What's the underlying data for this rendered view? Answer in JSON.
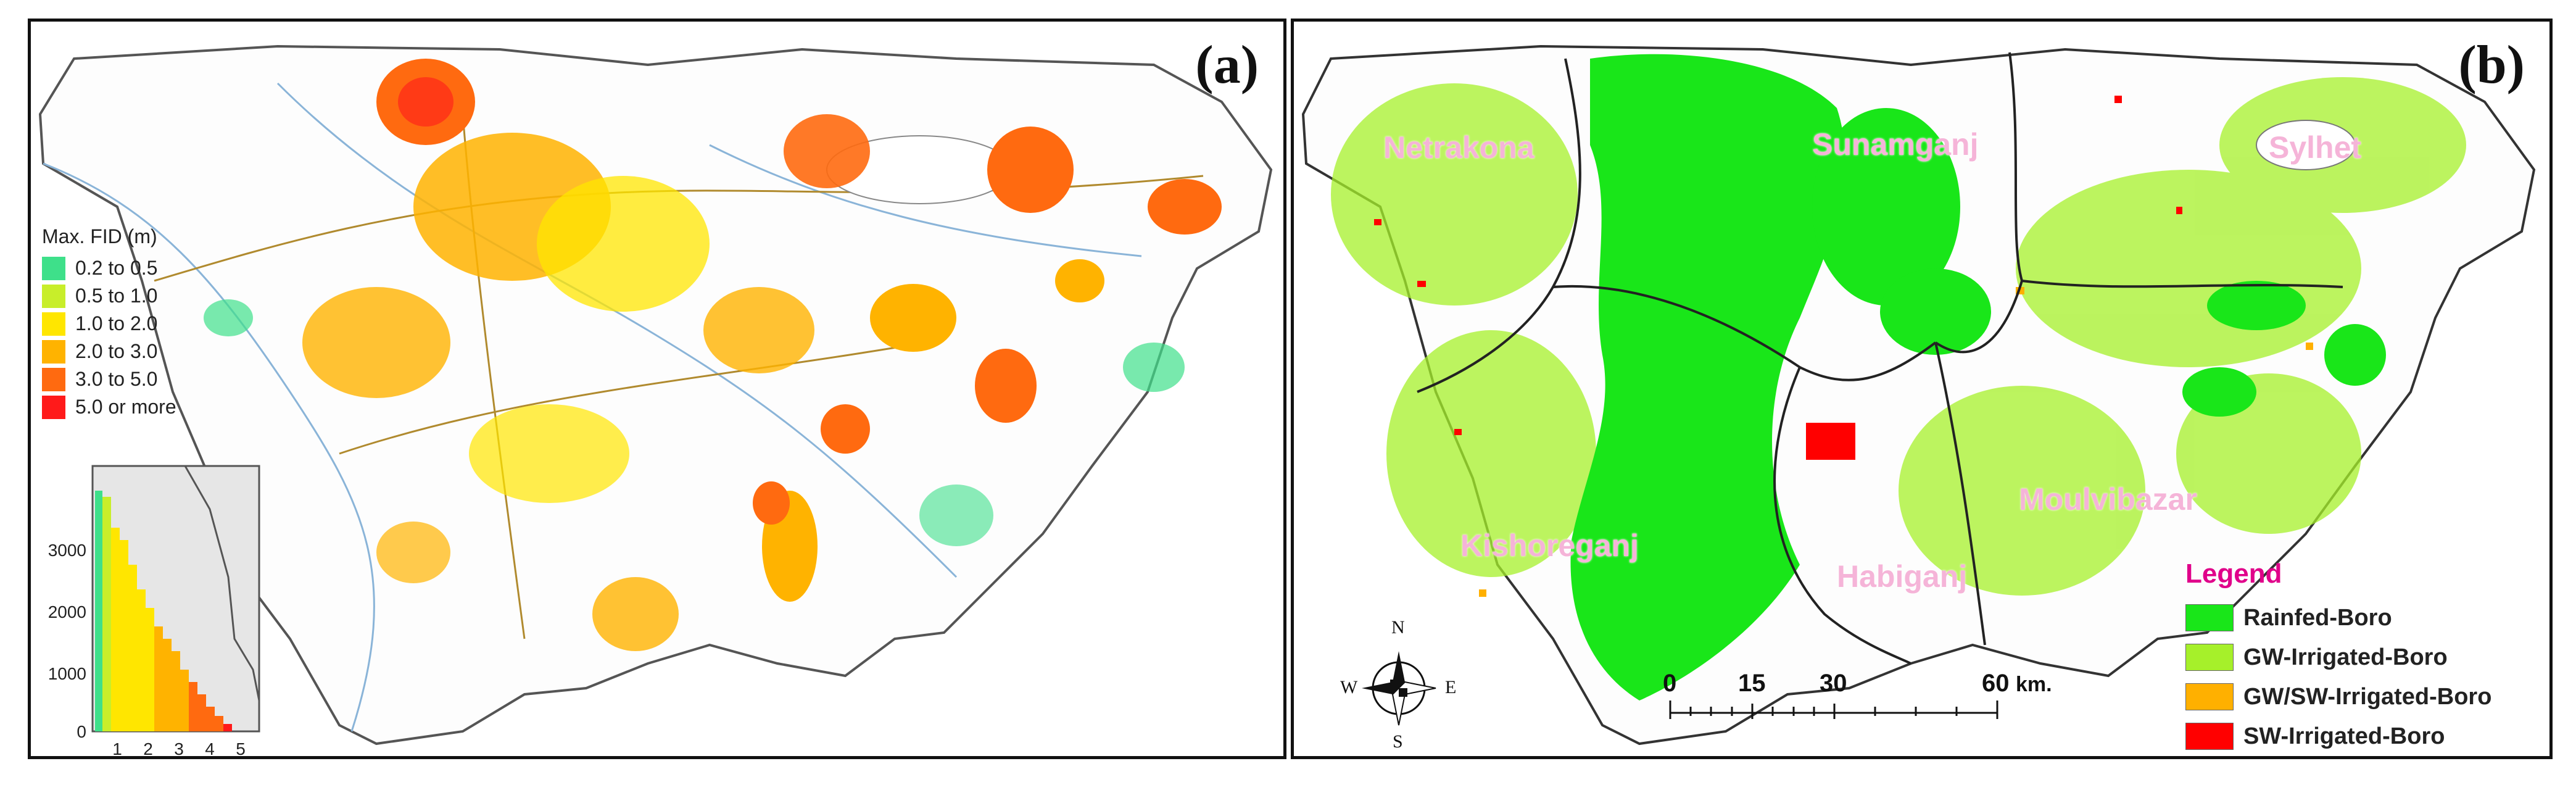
{
  "panel_a": {
    "label": "(a)",
    "legend": {
      "title": "Max. FID (m)",
      "items": [
        {
          "label": "0.2 to 0.5",
          "color": "#3ee08a"
        },
        {
          "label": "0.5 to 1.0",
          "color": "#c8ee2a"
        },
        {
          "label": "1.0 to 2.0",
          "color": "#ffe600"
        },
        {
          "label": "2.0 to 3.0",
          "color": "#ffb300"
        },
        {
          "label": "3.0 to 5.0",
          "color": "#ff6a10"
        },
        {
          "label": "5.0 or more",
          "color": "#ff1a1a"
        }
      ]
    },
    "inset_histogram": {
      "y_ticks": [
        "0",
        "1000",
        "2000",
        "3000"
      ],
      "x_ticks": [
        "1",
        "2",
        "3",
        "4",
        "5"
      ]
    }
  },
  "panel_b": {
    "label": "(b)",
    "districts": [
      {
        "name": "Netrakona"
      },
      {
        "name": "Sunamganj"
      },
      {
        "name": "Sylhet"
      },
      {
        "name": "Kishoreganj"
      },
      {
        "name": "Habiganj"
      },
      {
        "name": "Moulvibazar"
      }
    ],
    "legend": {
      "title": "Legend",
      "items": [
        {
          "label": "Rainfed-Boro",
          "color": "#19e619"
        },
        {
          "label": "GW-Irrigated-Boro",
          "color": "#a6f02a"
        },
        {
          "label": "GW/SW-Irrigated-Boro",
          "color": "#ffb000"
        },
        {
          "label": "SW-Irrigated-Boro",
          "color": "#ff0000"
        }
      ]
    },
    "scale_bar": {
      "ticks": [
        "0",
        "15",
        "30",
        "60"
      ],
      "unit": "km."
    },
    "compass": {
      "n": "N",
      "s": "S",
      "e": "E",
      "w": "W"
    }
  }
}
